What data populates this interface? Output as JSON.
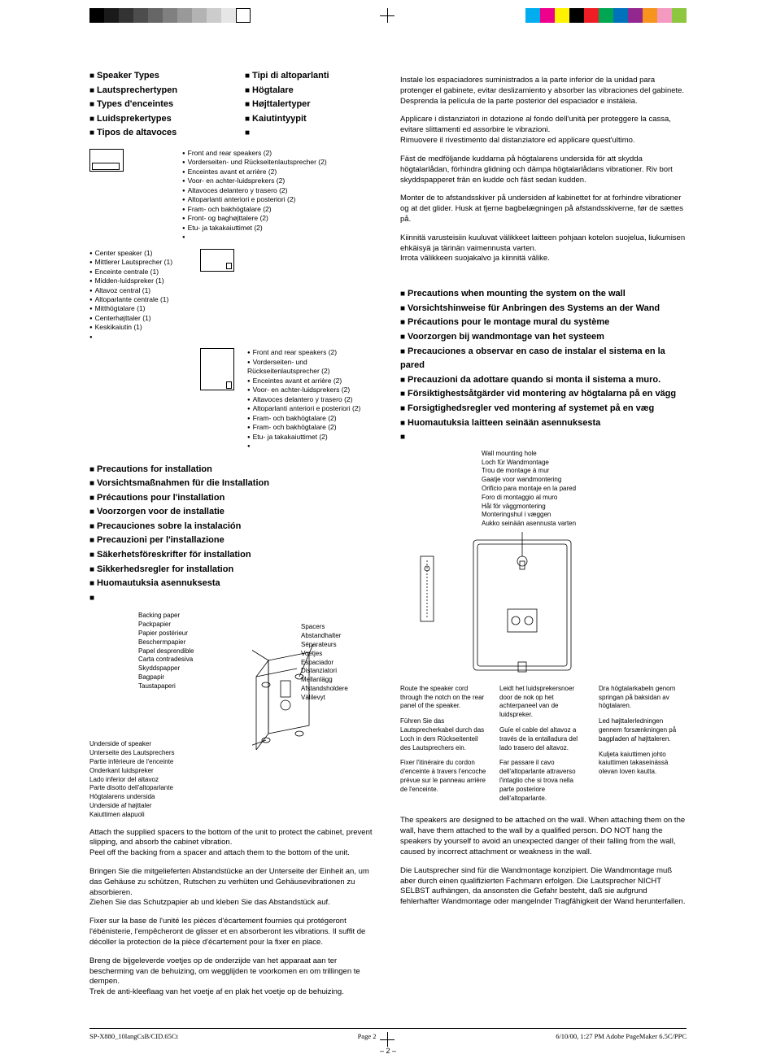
{
  "colorbar_left": [
    "#000000",
    "#1a1a1a",
    "#333333",
    "#4d4d4d",
    "#666666",
    "#808080",
    "#999999",
    "#b3b3b3",
    "#cccccc",
    "#e6e6e6",
    "#ffffff"
  ],
  "colorbar_right": [
    "#00aeef",
    "#ec008c",
    "#fff200",
    "#000000",
    "#ee1c25",
    "#00a651",
    "#0072bc",
    "#92278f",
    "#f7941d",
    "#f49ac1",
    "#8dc63f"
  ],
  "left": {
    "speaker_types": [
      "Speaker Types",
      "Lautsprechertypen",
      "Types d'enceintes",
      "Luidsprekertypes",
      "Tipos de altavoces"
    ],
    "speaker_types2": [
      "Tipi di altoparlanti",
      "Högtalare",
      "Højttalertyper",
      "Kaiutintyypit",
      ""
    ],
    "center_list": [
      "Center speaker (1)",
      "Mittlerer Lautsprecher (1)",
      "Enceinte centrale (1)",
      "Midden-luidspreker (1)",
      "Altavoz central (1)",
      "Altoparlante centrale (1)",
      "Mitthögtalare (1)",
      "Centerhøjttaler (1)",
      "Keskikaiutin (1)",
      ""
    ],
    "fr_list": [
      "Front and rear speakers (2)",
      "Vorderseiten- und Rückseitenlautsprecher (2)",
      "Enceintes avant et arrière (2)",
      "Voor- en achter-luidsprekers (2)",
      "Altavoces delantero y trasero (2)",
      "Altoparlanti anteriori e posteriori (2)",
      "Fram- och bakhögtalare (2)",
      "Front- og baghøjttalere (2)",
      "Etu- ja takakaiuttimet (2)",
      ""
    ],
    "fr_list2": [
      "Front and rear speakers (2)",
      "Vorderseiten- und Rückseitenlautsprecher (2)",
      "Enceintes avant et arrière (2)",
      "Voor- en achter-luidsprekers (2)",
      "Altavoces delantero y trasero (2)",
      "Altoparlanti anteriori e posteriori (2)",
      "Fram- och bakhögtalare (2)",
      "Fram- och bakhögtalare (2)",
      "Etu- ja takakaiuttimet (2)",
      ""
    ],
    "precautions": [
      "Precautions for installation",
      "Vorsichtsmaßnahmen für die Installation",
      "Précautions pour l'installation",
      "Voorzorgen voor de installatie",
      "Precauciones sobre la instalación",
      "Precauzioni per l'installazione",
      "Säkerhetsföreskrifter för installation",
      "Sikkerhedsregler for installation",
      "Huomautuksia asennuksesta",
      ""
    ],
    "backing_paper": [
      "Backing paper",
      "Packpapier",
      "Papier postérieur",
      "Beschermpapier",
      "Papel desprendible",
      "Carta contradesiva",
      "Skyddspapper",
      "Bagpapir",
      "Taustapaperi"
    ],
    "spacers": [
      "Spacers",
      "Abstandhalter",
      "Séparateurs",
      "Voetjes",
      "Espaciador",
      "Distanziatori",
      "Mellanlägg",
      "Afstandsholdere",
      "Välilevyt"
    ],
    "underside": [
      "Underside of speaker",
      "Unterseite des Lautsprechers",
      "Partie inférieure de l'enceinte",
      "Onderkant luidspreker",
      "Lado inferior del altavoz",
      "Parte disotto dell'altoparlante",
      "Högtalarens undersida",
      "Underside af højttaler",
      "Kaiuttimen alapuoli"
    ],
    "p1": "Attach the supplied spacers to the bottom of the unit to protect the cabinet, prevent slipping, and absorb the cabinet vibration.",
    "p1b": "Peel off the backing from a spacer and attach them to the bottom of the unit.",
    "p2": "Bringen Sie die mitgelieferten Abstandstücke an der Unterseite der Einheit an, um das Gehäuse zu schützen, Rutschen zu verhüten und Gehäusevibrationen zu absorbieren.",
    "p2b": "Ziehen Sie das Schutzpapier ab und kleben Sie das Abstandstück auf.",
    "p3": "Fixer sur la base de l'unité les pièces d'écartement fournies qui protégeront l'ébénisterie, l'empêcheront de glisser et en absorberont les vibrations. Il suffit de décoller la protection de la pièce d'écartement pour la fixer  en place.",
    "p4": "Breng de bijgeleverde voetjes op de onderzijde van het apparaat aan ter bescherming van de behuizing, om wegglijden te voorkomen en om trillingen te dempen.",
    "p4b": "Trek de anti-kleeflaag van het voetje af en  plak het voetje op de behuizing."
  },
  "right": {
    "p1": "Instale los espaciadores suministrados a la parte inferior de la unidad para protenger el gabinete, evitar deslizamiento y absorber las vibraciones del gabinete.",
    "p1b": "Desprenda la película de la parte posterior del espaciador e instáleia.",
    "p2": "Applicare i distanziatori in dotazione al fondo dell'unità per proteggere la cassa, evitare slittamenti ed assorbire le vibrazioni.",
    "p2b": "Rimuovere il rivestimento dal distanziatore ed applicare quest'ultimo.",
    "p3": "Fäst de medföljande kuddarna på högtalarens undersida för att skydda högtalarlådan, förhindra glidning och dämpa högtalarlådans vibrationer. Riv bort skyddspapperet frän en kudde och fäst sedan kudden.",
    "p4": "Monter de to afstandsskiver på undersiden af kabinettet for at forhindre vibrationer og at det glider. Husk at fjerne bagbelægningen på afstandsskiverne, før de sættes på.",
    "p5": "Kiinnitä varusteisiin kuuluvat välikkeet laitteen pohjaan kotelon suojelua, liukumisen ehkäisyä ja tärinän vaimennusta varten.",
    "p5b": "Irrota välikkeen suojakalvo ja kiinnitä välike.",
    "wall_precautions": [
      "Precautions when mounting the system on the wall",
      "Vorsichtshinweise für Anbringen des Systems an der Wand",
      "Précautions pour le montage mural du système",
      "Voorzorgen bij wandmontage van het systeem",
      "Precauciones a observar en caso de instalar el sistema en la pared",
      "Precauzioni da adottare quando si monta il sistema a muro.",
      "Försiktighestsåtgärder vid montering av högtalarna på en vägg",
      "Forsigtighedsregler ved montering af systemet på en væg",
      "Huomautuksia laitteen seinään asennuksesta",
      ""
    ],
    "wall_hole": [
      "Wall mounting hole",
      "Loch für Wandmontage",
      "Trou de montage à mur",
      "Gaatje voor wandmontering",
      "Orificio para montaje en la pared",
      "Foro di montaggio al muro",
      "Hål för väggmontering",
      "Monteringshul i væggen",
      "Aukko seinään asennusta varten"
    ],
    "route_col1": [
      "Route the speaker cord through the notch on the rear panel of the speaker.",
      "Führen Sie das Lautsprecherkabel durch das Loch in dem Rückseitenteil des Lautsprechers ein.",
      "Fixer l'itinéraire du cordon d'enceinte à travers l'encoche prévue sur le panneau arrière de l'enceinte."
    ],
    "route_col2": [
      "Leidt het luidsprekersnoer door de nok op het achterpaneel van de luidspreker.",
      "Guíe el cable del altavoz a través de la entalladura del lado trasero del altavoz.",
      "Far passare il cavo dell'altoparlante attraverso l'intaglio che si trova nella parte posteriore dell'altoparlante."
    ],
    "route_col3": [
      "Dra högtalarkabeln genom springan på baksidan av högtalaren.",
      "Led højttalerledningen gennem forsænkningen på bagpladen af højttaleren.",
      "Kuljeta kaiuttimen johto kaiuttimen takaseinässä olevan loven kautta."
    ],
    "p6": "The speakers are designed to be attached on the wall. When attaching them on the wall, have them attached to the wall by a qualified person. DO NOT hang the speakers by yourself to avoid an unexpected danger of their falling from the wall, caused by incorrect attachment or weakness in the wall.",
    "p7": "Die Lautsprecher sind für die Wandmontage konzipiert. Die Wandmontage muß aber durch einen qualifizierten Fachmann erfolgen. Die Lautsprecher NICHT SELBST aufhängen, da ansonsten die Gefahr besteht, daß sie aufgrund fehlerhafter Wandmontage oder mangelnder Tragfähigkeit der Wand herunterfallen."
  },
  "pagenum": "– 2 –",
  "footer": {
    "left": "SP-X880_10langCsB/CID.65Ct",
    "mid": "Page 2",
    "right": "6/10/00, 1:27 PM   Adobe PageMaker 6.5C/PPC"
  }
}
